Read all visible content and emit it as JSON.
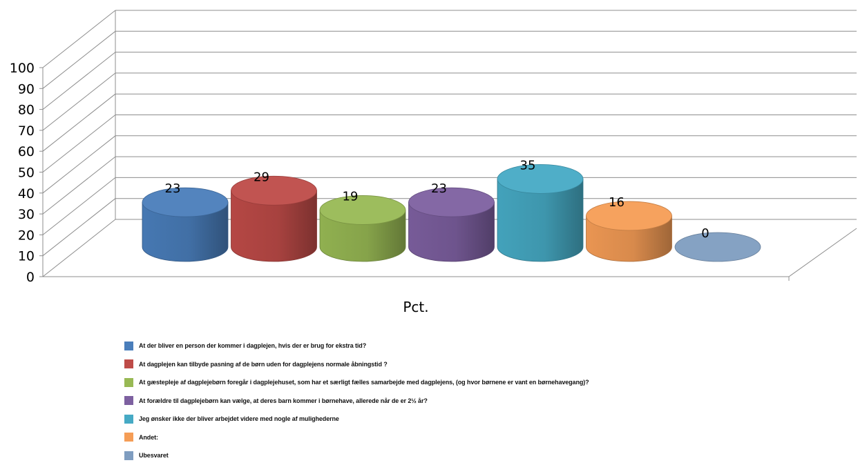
{
  "chart_data": {
    "type": "bar",
    "title": "",
    "xlabel": "Pct.",
    "ylabel": "",
    "ylim": [
      0,
      100
    ],
    "yticks": [
      0,
      10,
      20,
      30,
      40,
      50,
      60,
      70,
      80,
      90,
      100
    ],
    "grid": true,
    "legend_position": "bottom",
    "series": [
      {
        "name": "At der bliver en person der kommer i dagplejen, hvis der er brug for ekstra tid?",
        "value": 23,
        "color": "#4A7EBB"
      },
      {
        "name": "At dagplejen kan tilbyde pasning af de børn uden for dagplejens normale åbningstid ?",
        "value": 29,
        "color": "#BE4B48"
      },
      {
        "name": "At gæstepleje af dagplejebørn foregår i dagplejehuset, som har et særligt fælles samarbejde med dagplejens, (og hvor børnene er vant en børnehavegang)?",
        "value": 19,
        "color": "#98B954"
      },
      {
        "name": "At forældre til dagplejebørn kan vælge, at deres barn kommer i børnehave, allerede når de er 2½ år?",
        "value": 23,
        "color": "#7D60A0"
      },
      {
        "name": "Jeg ønsker ikke der bliver arbejdet videre med nogle af mulighederne",
        "value": 35,
        "color": "#46AAC5"
      },
      {
        "name": "Andet:",
        "value": 16,
        "color": "#F59D56"
      },
      {
        "name": "Ubesvaret",
        "value": 0,
        "color": "#7F9DC0"
      }
    ]
  }
}
